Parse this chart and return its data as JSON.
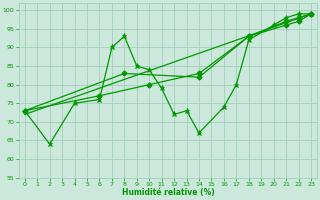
{
  "background_color": "#cce8dc",
  "grid_color": "#99ccb3",
  "line_color": "#009900",
  "xlabel": "Humidité relative (%)",
  "xlabel_color": "#009900",
  "xlim": [
    -0.5,
    23.5
  ],
  "ylim": [
    55,
    102
  ],
  "yticks": [
    55,
    60,
    65,
    70,
    75,
    80,
    85,
    90,
    95,
    100
  ],
  "xticks": [
    0,
    1,
    2,
    3,
    4,
    5,
    6,
    7,
    8,
    9,
    10,
    11,
    12,
    13,
    14,
    15,
    16,
    17,
    18,
    19,
    20,
    21,
    22,
    23
  ],
  "volatile": {
    "x": [
      0,
      2,
      4,
      6,
      7,
      8,
      9,
      10,
      11,
      12,
      13,
      14,
      16,
      17,
      18,
      20,
      21,
      22,
      23
    ],
    "y": [
      73,
      64,
      75,
      76,
      90,
      93,
      85,
      84,
      79,
      72,
      73,
      67,
      74,
      80,
      92,
      96,
      98,
      99,
      99
    ]
  },
  "trend1": {
    "x": [
      0,
      23
    ],
    "y": [
      72,
      99
    ]
  },
  "trend2": {
    "x": [
      0,
      8,
      14,
      18,
      21,
      22,
      23
    ],
    "y": [
      73,
      83,
      82,
      93,
      97,
      98,
      99
    ]
  },
  "trend3": {
    "x": [
      0,
      6,
      10,
      14,
      18,
      21,
      22,
      23
    ],
    "y": [
      73,
      77,
      80,
      83,
      93,
      96,
      97,
      99
    ]
  }
}
